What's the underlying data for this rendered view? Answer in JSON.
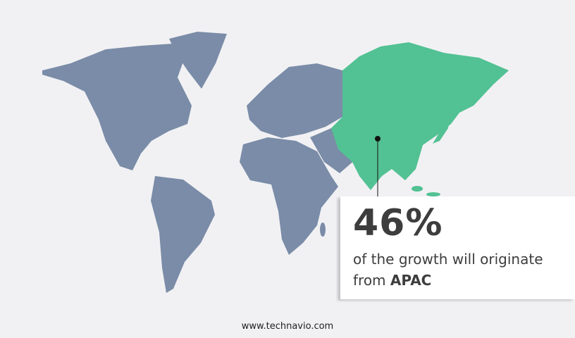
{
  "colors": {
    "land": "#7a8ca7",
    "highlight": "#52c193",
    "background": "#f1f1f4",
    "text": "#3d3d3d"
  },
  "highlight_region": "APAC",
  "callout": {
    "percent": "46%",
    "text": "of the growth will originate",
    "text2": "from",
    "region": "APAC"
  },
  "footer": {
    "url": "www.technavio.com"
  }
}
